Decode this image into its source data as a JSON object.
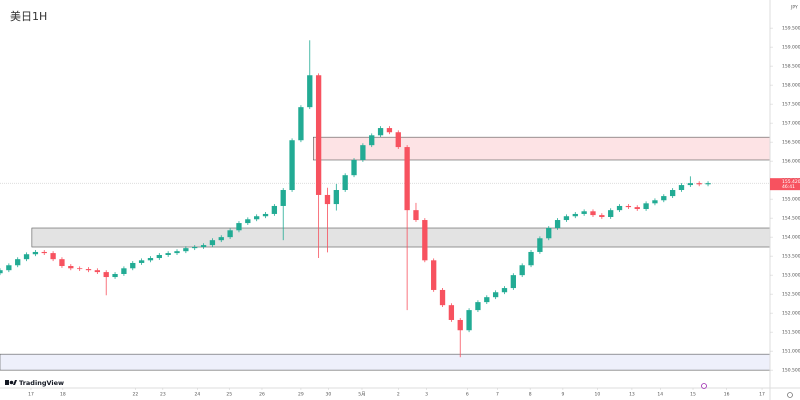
{
  "chart_data": {
    "type": "candlestick",
    "title": "美日1H",
    "currency": "JPY",
    "brand": "TradingView",
    "x": [
      0,
      1,
      2,
      3,
      4,
      5,
      6,
      7,
      8,
      9,
      10,
      11,
      12,
      13,
      14,
      15,
      16,
      17,
      18,
      19,
      20,
      21,
      22,
      23,
      24,
      25,
      26,
      27,
      28,
      29,
      30,
      31,
      32,
      33,
      34,
      35,
      36,
      37,
      38,
      39,
      40,
      41,
      42,
      43,
      44,
      45,
      46,
      47,
      48,
      49,
      50,
      51,
      52,
      53,
      54,
      55,
      56,
      57,
      58,
      59,
      60,
      61,
      62,
      63,
      64,
      65,
      66,
      67,
      68,
      69,
      70,
      71,
      72,
      73,
      74,
      75,
      76,
      77,
      78,
      79,
      80
    ],
    "ohlc": [
      [
        153.05,
        153.18,
        153.0,
        153.13
      ],
      [
        153.13,
        153.31,
        153.08,
        153.26
      ],
      [
        153.26,
        153.47,
        153.21,
        153.42
      ],
      [
        153.42,
        153.6,
        153.37,
        153.55
      ],
      [
        153.55,
        153.66,
        153.5,
        153.61
      ],
      [
        153.61,
        153.66,
        153.53,
        153.58
      ],
      [
        153.58,
        153.63,
        153.37,
        153.42
      ],
      [
        153.42,
        153.47,
        153.19,
        153.24
      ],
      [
        153.24,
        153.29,
        153.13,
        153.18
      ],
      [
        153.18,
        153.23,
        153.11,
        153.16
      ],
      [
        153.16,
        153.21,
        153.08,
        153.13
      ],
      [
        153.13,
        153.18,
        153.03,
        153.08
      ],
      [
        153.08,
        153.13,
        152.47,
        152.95
      ],
      [
        152.95,
        153.08,
        152.9,
        153.03
      ],
      [
        153.03,
        153.23,
        152.98,
        153.18
      ],
      [
        153.18,
        153.37,
        153.13,
        153.32
      ],
      [
        153.32,
        153.44,
        153.27,
        153.39
      ],
      [
        153.39,
        153.5,
        153.34,
        153.45
      ],
      [
        153.45,
        153.58,
        153.4,
        153.53
      ],
      [
        153.53,
        153.63,
        153.48,
        153.58
      ],
      [
        153.58,
        153.68,
        153.53,
        153.63
      ],
      [
        153.63,
        153.76,
        153.58,
        153.71
      ],
      [
        153.71,
        153.79,
        153.66,
        153.74
      ],
      [
        153.74,
        153.84,
        153.69,
        153.79
      ],
      [
        153.79,
        153.97,
        153.74,
        153.92
      ],
      [
        153.92,
        154.05,
        153.87,
        154.0
      ],
      [
        154.0,
        154.23,
        153.95,
        154.18
      ],
      [
        154.18,
        154.42,
        154.13,
        154.37
      ],
      [
        154.37,
        154.52,
        154.32,
        154.47
      ],
      [
        154.47,
        154.6,
        154.42,
        154.55
      ],
      [
        154.55,
        154.66,
        154.5,
        154.61
      ],
      [
        154.61,
        154.87,
        154.56,
        154.82
      ],
      [
        154.82,
        155.29,
        153.92,
        155.24
      ],
      [
        155.24,
        156.6,
        155.19,
        156.55
      ],
      [
        156.55,
        157.47,
        156.5,
        157.42
      ],
      [
        157.42,
        159.18,
        157.37,
        158.26
      ],
      [
        158.26,
        158.31,
        153.45,
        155.11
      ],
      [
        155.11,
        155.3,
        153.6,
        154.87
      ],
      [
        154.87,
        155.4,
        154.7,
        155.24
      ],
      [
        155.24,
        155.68,
        155.19,
        155.63
      ],
      [
        155.63,
        156.08,
        155.58,
        156.03
      ],
      [
        156.03,
        156.47,
        155.98,
        156.42
      ],
      [
        156.42,
        156.73,
        156.37,
        156.68
      ],
      [
        156.68,
        156.92,
        156.63,
        156.87
      ],
      [
        156.87,
        156.92,
        156.71,
        156.76
      ],
      [
        156.76,
        156.81,
        156.32,
        156.37
      ],
      [
        156.37,
        156.42,
        152.08,
        154.71
      ],
      [
        154.71,
        154.9,
        154.4,
        154.45
      ],
      [
        154.45,
        154.5,
        153.34,
        153.39
      ],
      [
        153.39,
        153.44,
        152.56,
        152.61
      ],
      [
        152.61,
        152.66,
        152.16,
        152.21
      ],
      [
        152.21,
        152.26,
        151.77,
        151.82
      ],
      [
        151.82,
        151.87,
        150.84,
        151.55
      ],
      [
        151.55,
        152.13,
        151.5,
        152.08
      ],
      [
        152.08,
        152.34,
        152.03,
        152.29
      ],
      [
        152.29,
        152.47,
        152.24,
        152.42
      ],
      [
        152.42,
        152.6,
        152.37,
        152.55
      ],
      [
        152.55,
        152.71,
        152.5,
        152.66
      ],
      [
        152.66,
        153.05,
        152.61,
        153.0
      ],
      [
        153.0,
        153.31,
        152.95,
        153.26
      ],
      [
        153.26,
        153.66,
        153.21,
        153.61
      ],
      [
        153.61,
        154.02,
        153.56,
        153.97
      ],
      [
        153.97,
        154.29,
        153.92,
        154.24
      ],
      [
        154.24,
        154.5,
        154.19,
        154.45
      ],
      [
        154.45,
        154.6,
        154.4,
        154.55
      ],
      [
        154.55,
        154.66,
        154.5,
        154.61
      ],
      [
        154.61,
        154.73,
        154.56,
        154.68
      ],
      [
        154.68,
        154.73,
        154.53,
        154.58
      ],
      [
        154.58,
        154.63,
        154.48,
        154.53
      ],
      [
        154.53,
        154.76,
        154.48,
        154.71
      ],
      [
        154.71,
        154.87,
        154.66,
        154.82
      ],
      [
        154.82,
        154.87,
        154.74,
        154.79
      ],
      [
        154.79,
        154.84,
        154.69,
        154.74
      ],
      [
        154.74,
        154.94,
        154.69,
        154.89
      ],
      [
        154.89,
        155.02,
        154.84,
        154.97
      ],
      [
        154.97,
        155.13,
        154.92,
        155.08
      ],
      [
        155.08,
        155.29,
        155.03,
        155.24
      ],
      [
        155.24,
        155.42,
        155.19,
        155.37
      ],
      [
        155.37,
        155.6,
        155.32,
        155.42
      ],
      [
        155.42,
        155.47,
        155.34,
        155.39
      ],
      [
        155.39,
        155.47,
        155.34,
        155.42
      ]
    ],
    "up_color": "#22ab94",
    "down_color": "#f7525f",
    "zones": [
      {
        "x0": 35.4,
        "y0": 156.03,
        "y1": 156.63,
        "color": "#fde3e5"
      },
      {
        "x0": 3.6,
        "y0": 153.74,
        "y1": 154.24,
        "color": "#e3e3e3"
      },
      {
        "x0": 0,
        "y0": 150.5,
        "y1": 150.92,
        "color": "#eef0fb"
      }
    ],
    "last_price": {
      "value": 155.42,
      "label": "155.420"
    },
    "countdown": "46:41",
    "xlim": [
      0,
      87
    ],
    "ylim": [
      150.03,
      160.24
    ],
    "grid": false,
    "xticks": [
      {
        "value": 3.5,
        "label": "17"
      },
      {
        "value": 7.1,
        "label": "18"
      },
      {
        "value": 15.3,
        "label": "22"
      },
      {
        "value": 18.4,
        "label": "23"
      },
      {
        "value": 22.3,
        "label": "24"
      },
      {
        "value": 25.9,
        "label": "25"
      },
      {
        "value": 29.6,
        "label": "26"
      },
      {
        "value": 34,
        "label": "29"
      },
      {
        "value": 37.1,
        "label": "30"
      },
      {
        "value": 40.9,
        "label": "5月"
      },
      {
        "value": 45,
        "label": "2"
      },
      {
        "value": 48.2,
        "label": "3"
      },
      {
        "value": 52.8,
        "label": "6"
      },
      {
        "value": 56.2,
        "label": "7"
      },
      {
        "value": 59.9,
        "label": "8"
      },
      {
        "value": 63.6,
        "label": "9"
      },
      {
        "value": 67.5,
        "label": "10"
      },
      {
        "value": 71.4,
        "label": "13"
      },
      {
        "value": 74.6,
        "label": "14"
      },
      {
        "value": 78.3,
        "label": "15"
      },
      {
        "value": 82.1,
        "label": "16"
      },
      {
        "value": 86.1,
        "label": "17"
      }
    ],
    "yticks": [
      {
        "value": 150.5,
        "label": "150.500"
      },
      {
        "value": 151,
        "label": "151.000"
      },
      {
        "value": 151.5,
        "label": "151.500"
      },
      {
        "value": 152,
        "label": "152.000"
      },
      {
        "value": 152.5,
        "label": "152.500"
      },
      {
        "value": 153,
        "label": "153.000"
      },
      {
        "value": 153.5,
        "label": "153.500"
      },
      {
        "value": 154,
        "label": "154.000"
      },
      {
        "value": 154.5,
        "label": "154.500"
      },
      {
        "value": 155,
        "label": "155.000"
      },
      {
        "value": 155.5,
        "label": "155.500"
      },
      {
        "value": 156,
        "label": "156.000"
      },
      {
        "value": 156.5,
        "label": "156.500"
      },
      {
        "value": 157,
        "label": "157.000"
      },
      {
        "value": 157.5,
        "label": "157.500"
      },
      {
        "value": 158,
        "label": "158.000"
      },
      {
        "value": 158.5,
        "label": "158.500"
      },
      {
        "value": 159,
        "label": "159.000"
      },
      {
        "value": 159.5,
        "label": "159.500"
      }
    ]
  }
}
